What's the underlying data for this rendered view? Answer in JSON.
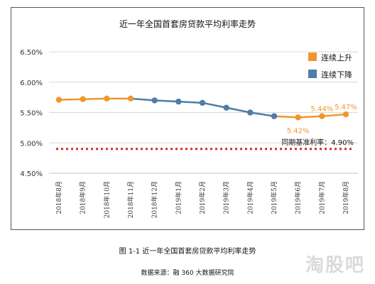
{
  "colors": {
    "rising": "#F0962E",
    "falling": "#4F7CA8",
    "baseline": "#D62B2B",
    "grid": "#D9D9D9",
    "text": "#333333"
  },
  "caption": "图 1-1  近一年全国首套房贷款平均利率走势",
  "source": "数据来源：融 360 大数据研究院",
  "watermark": "淘股吧",
  "chart_data": {
    "type": "line",
    "title": "近一年全国首套房贷款平均利率走势",
    "categories": [
      "2018年8月",
      "2018年9月",
      "2018年10月",
      "2018年11月",
      "2018年12月",
      "2019年1月",
      "2019年2月",
      "2019年3月",
      "2019年4月",
      "2019年5月",
      "2019年6月",
      "2019年7月",
      "2019年8月"
    ],
    "values": [
      5.71,
      5.72,
      5.73,
      5.73,
      5.7,
      5.68,
      5.66,
      5.58,
      5.5,
      5.44,
      5.42,
      5.44,
      5.47
    ],
    "segment_colors": [
      "rising",
      "rising",
      "rising",
      "rising",
      "falling",
      "falling",
      "falling",
      "falling",
      "falling",
      "falling",
      "rising",
      "rising",
      "rising"
    ],
    "ylim": [
      4.5,
      6.5
    ],
    "yticks": [
      "4.50%",
      "5.00%",
      "5.50%",
      "6.00%",
      "6.50%"
    ],
    "ytick_values": [
      4.5,
      5.0,
      5.5,
      6.0,
      6.5
    ],
    "data_labels": [
      {
        "index": 10,
        "text": "5.42%",
        "pos": "below"
      },
      {
        "index": 11,
        "text": "5.44%",
        "pos": "above"
      },
      {
        "index": 12,
        "text": "5.47%",
        "pos": "above"
      }
    ],
    "legend": [
      {
        "label": "连续上升",
        "color_key": "rising"
      },
      {
        "label": "连续下降",
        "color_key": "falling"
      }
    ],
    "legend_position": "top-right",
    "reference_line": {
      "value": 4.9,
      "label": "同期基准利率：4.90%",
      "style": "dotted"
    },
    "grid": "horizontal"
  }
}
